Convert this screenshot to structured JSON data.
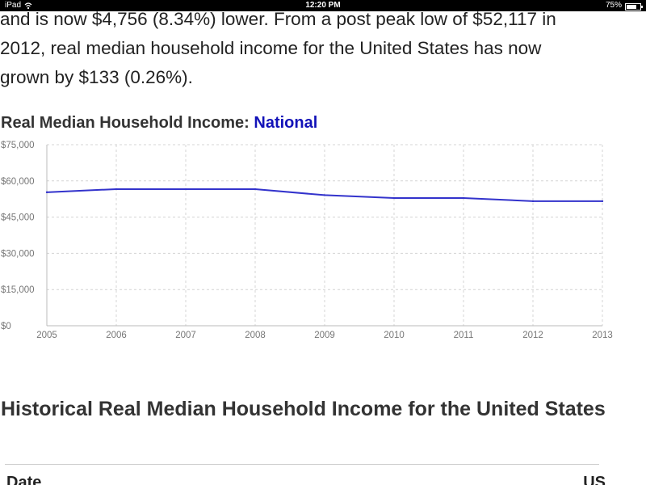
{
  "status_bar": {
    "device": "iPad",
    "time": "12:20 PM",
    "battery": "75%",
    "battery_level": 0.75
  },
  "article": {
    "intro_lines": [
      "and is now $4,756 (8.34%) lower. From a post peak low of $52,117 in",
      "2012, real median household income for the United States has now",
      "grown by $133 (0.26%)."
    ]
  },
  "chart_section": {
    "title_prefix": "Real Median Household Income: ",
    "title_highlight": "National"
  },
  "chart_data": {
    "type": "line",
    "title": "Real Median Household Income: National",
    "x": [
      2005,
      2006,
      2007,
      2008,
      2009,
      2010,
      2011,
      2012,
      2013
    ],
    "series": [
      {
        "values": [
          55300,
          56600,
          56600,
          56600,
          54100,
          52900,
          52900,
          51600,
          51600
        ],
        "color": "#3333cc"
      }
    ],
    "y_tick_labels": [
      "$75,000",
      "$60,000",
      "$45,000",
      "$30,000",
      "$15,000",
      "$0"
    ],
    "y_ticks": [
      75000,
      60000,
      45000,
      30000,
      15000,
      0
    ],
    "x_tick_labels": [
      "2005",
      "2006",
      "2007",
      "2008",
      "2009",
      "2010",
      "2011",
      "2012",
      "2013"
    ],
    "ylim": [
      0,
      75000
    ],
    "xlim": [
      2005,
      2013
    ],
    "grid": true,
    "legend": false
  },
  "section": {
    "heading": "Historical Real Median Household Income for the United States"
  },
  "table": {
    "headers": [
      "Date",
      "US"
    ]
  }
}
